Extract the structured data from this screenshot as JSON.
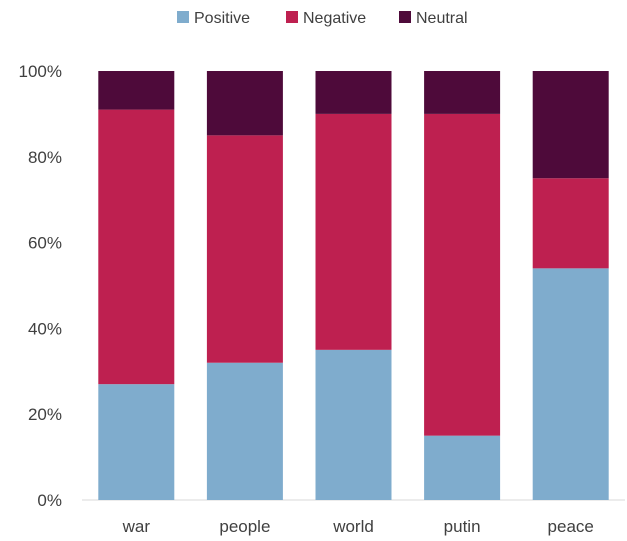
{
  "chart_data": {
    "type": "bar",
    "stacked": true,
    "percent": true,
    "categories": [
      "war",
      "people",
      "world",
      "putin",
      "peace"
    ],
    "series": [
      {
        "name": "Positive",
        "color": "#7FACCD",
        "values": [
          27,
          32,
          35,
          15,
          54
        ]
      },
      {
        "name": "Negative",
        "color": "#BE2050",
        "values": [
          64,
          53,
          55,
          75,
          21
        ]
      },
      {
        "name": "Neutral",
        "color": "#4E0A3A",
        "values": [
          9,
          15,
          10,
          10,
          25
        ]
      }
    ],
    "ylim": [
      0,
      100
    ],
    "yticks": [
      0,
      20,
      40,
      60,
      80,
      100
    ],
    "ytick_labels": [
      "0%",
      "20%",
      "40%",
      "60%",
      "80%",
      "100%"
    ],
    "grid": false,
    "legend_position": "top"
  }
}
